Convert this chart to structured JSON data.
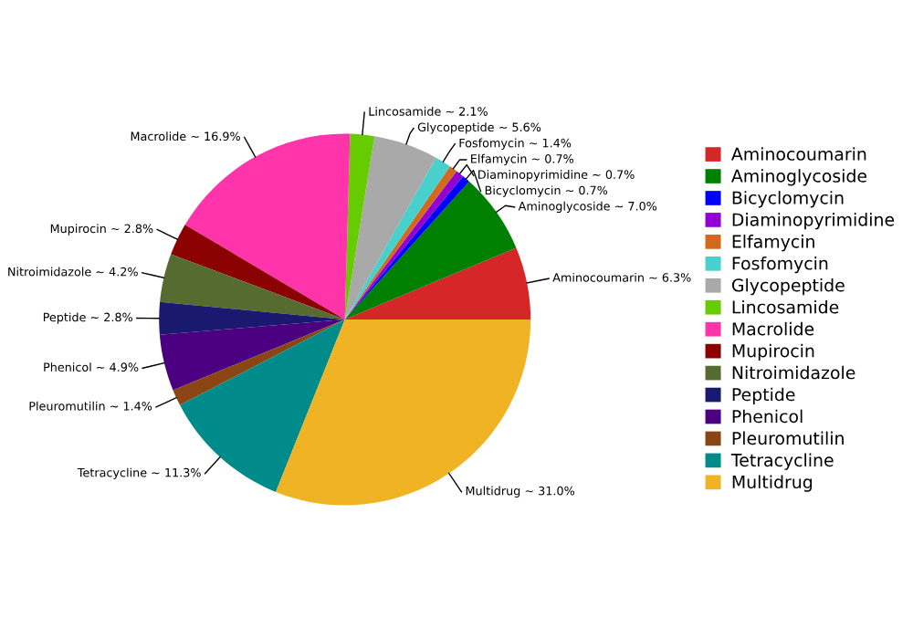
{
  "chart_data": {
    "type": "pie",
    "categories": [
      "Aminocoumarin",
      "Aminoglycoside",
      "Bicyclomycin",
      "Diaminopyrimidine",
      "Elfamycin",
      "Fosfomycin",
      "Glycopeptide",
      "Lincosamide",
      "Macrolide",
      "Mupirocin",
      "Nitroimidazole",
      "Peptide",
      "Phenicol",
      "Pleuromutilin",
      "Tetracycline",
      "Multidrug"
    ],
    "values": [
      6.3,
      7.0,
      0.7,
      0.7,
      0.7,
      1.4,
      5.6,
      2.1,
      16.9,
      2.8,
      4.2,
      2.8,
      4.9,
      1.4,
      11.3,
      31.0
    ],
    "colors": [
      "#d62728",
      "#008000",
      "#0000ff",
      "#9400d3",
      "#d2691e",
      "#48d1cc",
      "#a9a9a9",
      "#66cc00",
      "#ff33aa",
      "#8b0000",
      "#556b2f",
      "#191970",
      "#4b0082",
      "#8b4513",
      "#008b8b",
      "#f0b323"
    ],
    "value_labels": [
      "Aminocoumarin ~ 6.3%",
      "Aminoglycoside ~ 7.0%",
      "Bicyclomycin ~ 0.7%",
      "Diaminopyrimidine ~ 0.7%",
      "Elfamycin ~ 0.7%",
      "Fosfomycin ~ 1.4%",
      "Glycopeptide ~ 5.6%",
      "Lincosamide ~ 2.1%",
      "Macrolide ~ 16.9%",
      "Mupirocin ~ 2.8%",
      "Nitroimidazole ~ 4.2%",
      "Peptide ~ 2.8%",
      "Phenicol ~ 4.9%",
      "Pleuromutilin ~ 1.4%",
      "Tetracycline ~ 11.3%",
      "Multidrug ~ 31.0%"
    ],
    "legend": "right"
  }
}
